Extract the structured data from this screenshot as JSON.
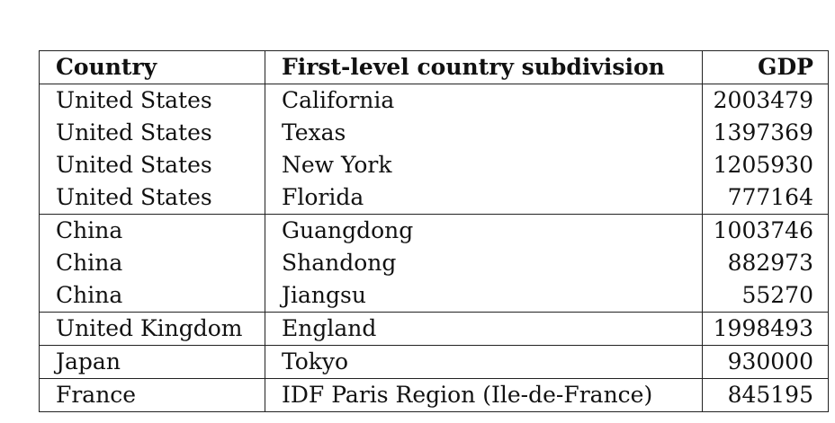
{
  "table": {
    "headers": {
      "country": "Country",
      "subdivision": "First-level country subdivision",
      "gdp": "GDP"
    },
    "rows": [
      {
        "country": "United States",
        "subdivision": "California",
        "gdp": "2003479"
      },
      {
        "country": "United States",
        "subdivision": "Texas",
        "gdp": "1397369"
      },
      {
        "country": "United States",
        "subdivision": "New York",
        "gdp": "1205930"
      },
      {
        "country": "United States",
        "subdivision": "Florida",
        "gdp": "777164"
      },
      {
        "country": "China",
        "subdivision": "Guangdong",
        "gdp": "1003746"
      },
      {
        "country": "China",
        "subdivision": "Shandong",
        "gdp": "882973"
      },
      {
        "country": "China",
        "subdivision": "Jiangsu",
        "gdp": "55270"
      },
      {
        "country": "United Kingdom",
        "subdivision": "England",
        "gdp": "1998493"
      },
      {
        "country": "Japan",
        "subdivision": "Tokyo",
        "gdp": "930000"
      },
      {
        "country": "France",
        "subdivision": "IDF Paris Region (Ile-de-France)",
        "gdp": "845195"
      }
    ]
  }
}
